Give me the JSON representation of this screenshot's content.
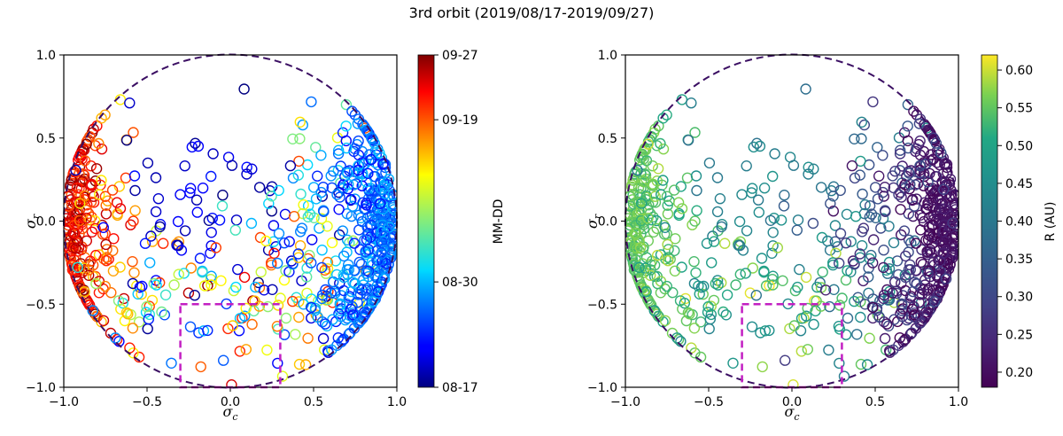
{
  "figure_title": "3rd orbit (2019/08/17-2019/09/27)",
  "chart_data": [
    {
      "type": "scatter",
      "name": "left-panel",
      "xlabel_main": "σ",
      "xlabel_sub": "c",
      "ylabel_main": "σ",
      "ylabel_sub": "r",
      "xlim": [
        -1.0,
        1.0
      ],
      "ylim": [
        -1.0,
        1.0
      ],
      "xticks": [
        "−1.0",
        "−0.5",
        "0.0",
        "0.5",
        "1.0"
      ],
      "yticks": [
        "−1.0",
        "−0.5",
        "0.0",
        "0.5",
        "1.0"
      ],
      "xtick_values": [
        -1.0,
        -0.5,
        0.0,
        0.5,
        1.0
      ],
      "ytick_values": [
        -1.0,
        -0.5,
        0.0,
        0.5,
        1.0
      ],
      "unit_circle": {
        "radius": 1.0,
        "style": "dashed",
        "color": "#3b0f63"
      },
      "region_box": {
        "x": [
          -0.3,
          0.3
        ],
        "y": [
          -1.0,
          -0.5
        ],
        "style": "dashed",
        "color": "#c21fc2"
      },
      "colorbar": {
        "label": "MM-DD",
        "colormap": "jet",
        "ticks": [
          "08-17",
          "08-30",
          "09-19",
          "09-27"
        ],
        "tick_positions": [
          0.0,
          0.317,
          0.805,
          1.0
        ]
      },
      "marker": "open-circle",
      "point_count_estimate": 900,
      "clusters": [
        {
          "cx": -0.93,
          "cy": -0.05,
          "sx": 0.06,
          "sy": 0.3,
          "n": 170,
          "c": [
            0.78,
            1.0
          ]
        },
        {
          "cx": -0.75,
          "cy": -0.05,
          "sx": 0.1,
          "sy": 0.35,
          "n": 70,
          "c": [
            0.65,
            1.0
          ]
        },
        {
          "cx": -0.42,
          "cy": -0.45,
          "sx": 0.22,
          "sy": 0.22,
          "n": 60,
          "c": [
            0.0,
            1.0
          ]
        },
        {
          "cx": -0.15,
          "cy": 0.15,
          "sx": 0.3,
          "sy": 0.3,
          "n": 55,
          "c": [
            0.0,
            0.15
          ]
        },
        {
          "cx": 0.1,
          "cy": -0.55,
          "sx": 0.25,
          "sy": 0.22,
          "n": 45,
          "c": [
            0.0,
            1.0
          ]
        },
        {
          "cx": 0.48,
          "cy": -0.2,
          "sx": 0.18,
          "sy": 0.38,
          "n": 110,
          "c": [
            0.0,
            0.85
          ]
        },
        {
          "cx": 0.9,
          "cy": 0.0,
          "sx": 0.07,
          "sy": 0.3,
          "n": 240,
          "c": [
            0.15,
            0.33
          ]
        },
        {
          "cx": 0.72,
          "cy": -0.5,
          "sx": 0.12,
          "sy": 0.18,
          "n": 90,
          "c": [
            0.15,
            0.33
          ]
        },
        {
          "cx": 0.75,
          "cy": 0.3,
          "sx": 0.12,
          "sy": 0.15,
          "n": 60,
          "c": [
            0.1,
            0.35
          ]
        }
      ]
    },
    {
      "type": "scatter",
      "name": "right-panel",
      "xlabel_main": "σ",
      "xlabel_sub": "c",
      "ylabel_main": "σ",
      "ylabel_sub": "r",
      "xlim": [
        -1.0,
        1.0
      ],
      "ylim": [
        -1.0,
        1.0
      ],
      "xticks": [
        "−1.0",
        "−0.5",
        "0.0",
        "0.5",
        "1.0"
      ],
      "yticks": [
        "−1.0",
        "−0.5",
        "0.0",
        "0.5",
        "1.0"
      ],
      "xtick_values": [
        -1.0,
        -0.5,
        0.0,
        0.5,
        1.0
      ],
      "ytick_values": [
        -1.0,
        -0.5,
        0.0,
        0.5,
        1.0
      ],
      "unit_circle": {
        "radius": 1.0,
        "style": "dashed",
        "color": "#3b0f63"
      },
      "region_box": {
        "x": [
          -0.3,
          0.3
        ],
        "y": [
          -1.0,
          -0.5
        ],
        "style": "dashed",
        "color": "#c21fc2"
      },
      "colorbar": {
        "label": "R (AU)",
        "colormap": "viridis",
        "range": [
          0.18,
          0.62
        ],
        "ticks": [
          "0.20",
          "0.25",
          "0.30",
          "0.35",
          "0.40",
          "0.45",
          "0.50",
          "0.55",
          "0.60"
        ],
        "tick_values": [
          0.2,
          0.25,
          0.3,
          0.35,
          0.4,
          0.45,
          0.5,
          0.55,
          0.6
        ]
      },
      "marker": "open-circle",
      "point_count_estimate": 900,
      "clusters": [
        {
          "cx": -0.93,
          "cy": -0.05,
          "sx": 0.06,
          "sy": 0.3,
          "n": 170,
          "c": [
            0.78,
            0.9
          ]
        },
        {
          "cx": -0.75,
          "cy": -0.05,
          "sx": 0.1,
          "sy": 0.35,
          "n": 70,
          "c": [
            0.7,
            0.95
          ]
        },
        {
          "cx": -0.42,
          "cy": -0.45,
          "sx": 0.22,
          "sy": 0.22,
          "n": 60,
          "c": [
            0.55,
            1.0
          ]
        },
        {
          "cx": -0.15,
          "cy": 0.15,
          "sx": 0.3,
          "sy": 0.3,
          "n": 55,
          "c": [
            0.45,
            0.65
          ]
        },
        {
          "cx": 0.1,
          "cy": -0.55,
          "sx": 0.25,
          "sy": 0.22,
          "n": 45,
          "c": [
            0.5,
            1.0
          ]
        },
        {
          "cx": 0.48,
          "cy": -0.2,
          "sx": 0.18,
          "sy": 0.38,
          "n": 110,
          "c": [
            0.05,
            0.7
          ]
        },
        {
          "cx": 0.9,
          "cy": 0.0,
          "sx": 0.07,
          "sy": 0.3,
          "n": 240,
          "c": [
            0.0,
            0.12
          ]
        },
        {
          "cx": 0.72,
          "cy": -0.5,
          "sx": 0.12,
          "sy": 0.18,
          "n": 90,
          "c": [
            0.0,
            0.3
          ]
        },
        {
          "cx": 0.75,
          "cy": 0.3,
          "sx": 0.12,
          "sy": 0.15,
          "n": 60,
          "c": [
            0.0,
            0.35
          ]
        }
      ]
    }
  ]
}
